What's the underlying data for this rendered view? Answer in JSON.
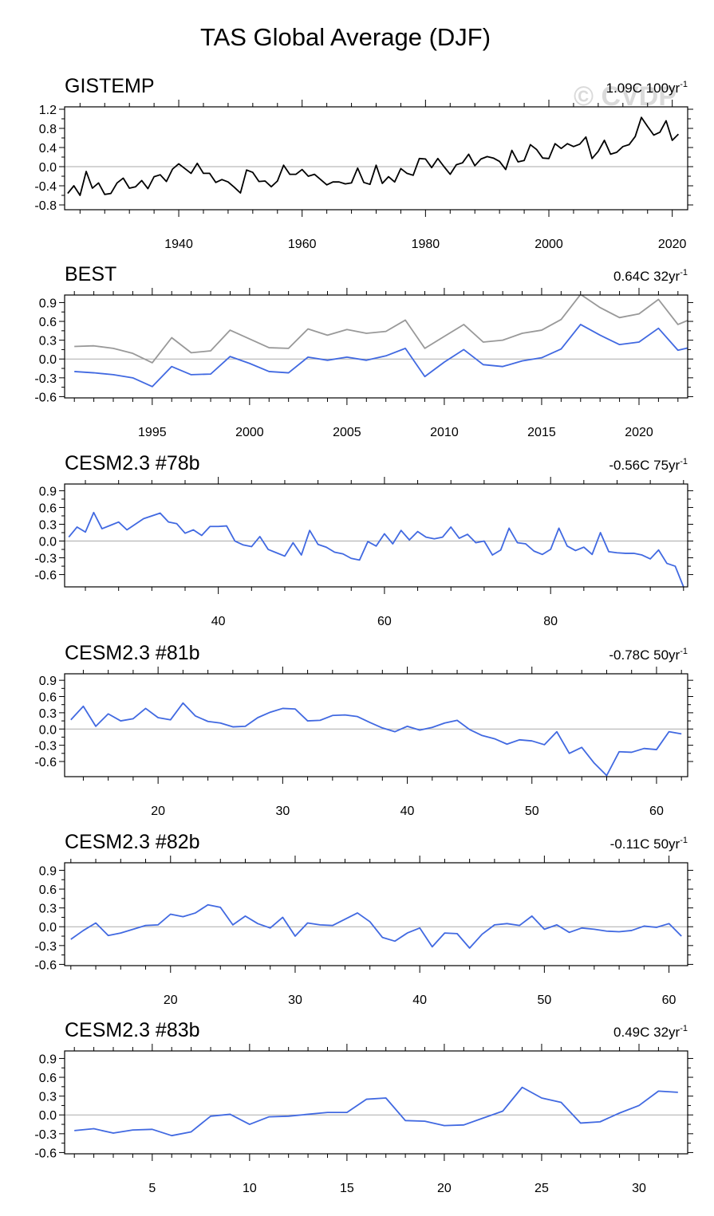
{
  "figure_title": "TAS Global Average (DJF)",
  "watermark": "© CVDP",
  "colors": {
    "obs_line": "#000000",
    "model_line": "#4169e1",
    "reference_line": "#999999",
    "zero_line": "#aaaaaa",
    "frame": "#000000"
  },
  "chart_data": [
    {
      "type": "line",
      "title": "GISTEMP",
      "trend_label": {
        "value": "1.09C 100yr",
        "superscript": "-1"
      },
      "xlim": [
        1921.5,
        2022.5
      ],
      "ylim": [
        -0.9,
        1.25
      ],
      "yticks": [
        "-0.8",
        "-0.4",
        "0.0",
        "0.4",
        "0.8",
        "1.2"
      ],
      "xticks_labeled": [
        "1940",
        "1960",
        "1980",
        "2000",
        "2020"
      ],
      "x_start": 1922,
      "series": [
        {
          "name": "GISTEMP",
          "color": "#000000",
          "values": [
            -0.56,
            -0.4,
            -0.6,
            -0.1,
            -0.45,
            -0.34,
            -0.58,
            -0.56,
            -0.34,
            -0.24,
            -0.45,
            -0.42,
            -0.29,
            -0.46,
            -0.21,
            -0.17,
            -0.31,
            -0.05,
            0.06,
            -0.04,
            -0.14,
            0.07,
            -0.14,
            -0.14,
            -0.33,
            -0.27,
            -0.32,
            -0.43,
            -0.55,
            -0.07,
            -0.12,
            -0.31,
            -0.3,
            -0.42,
            -0.3,
            0.03,
            -0.16,
            -0.16,
            -0.06,
            -0.2,
            -0.16,
            -0.27,
            -0.38,
            -0.32,
            -0.32,
            -0.36,
            -0.34,
            -0.03,
            -0.33,
            -0.37,
            0.03,
            -0.35,
            -0.21,
            -0.32,
            -0.04,
            -0.14,
            -0.18,
            0.17,
            0.16,
            -0.02,
            0.17,
            0.0,
            -0.16,
            0.04,
            0.08,
            0.26,
            0.02,
            0.16,
            0.21,
            0.18,
            0.11,
            -0.06,
            0.34,
            0.1,
            0.13,
            0.46,
            0.36,
            0.18,
            0.17,
            0.48,
            0.38,
            0.48,
            0.42,
            0.47,
            0.62,
            0.17,
            0.32,
            0.55,
            0.26,
            0.3,
            0.42,
            0.46,
            0.63,
            1.03,
            0.84,
            0.66,
            0.72,
            0.96,
            0.55,
            0.68
          ]
        }
      ]
    },
    {
      "type": "line",
      "title": "BEST",
      "trend_label": {
        "value": "0.64C 32yr",
        "superscript": "-1"
      },
      "xlim": [
        1990.5,
        2022.5
      ],
      "ylim": [
        -0.62,
        1.02
      ],
      "yticks": [
        "-0.6",
        "-0.3",
        "0.0",
        "0.3",
        "0.6",
        "0.9"
      ],
      "xticks_labeled": [
        "1995",
        "2000",
        "2005",
        "2010",
        "2015",
        "2020"
      ],
      "x_start": 1991,
      "series": [
        {
          "name": "BEST",
          "color": "#4169e1",
          "values": [
            -0.2,
            -0.22,
            -0.25,
            -0.3,
            -0.44,
            -0.12,
            -0.25,
            -0.24,
            0.04,
            -0.07,
            -0.2,
            -0.22,
            0.03,
            -0.02,
            0.03,
            -0.02,
            0.05,
            0.17,
            -0.28,
            -0.05,
            0.15,
            -0.09,
            -0.12,
            -0.03,
            0.02,
            0.16,
            0.55,
            0.38,
            0.23,
            0.27,
            0.49,
            0.14,
            0.21
          ]
        },
        {
          "name": "GISTEMP reference",
          "color": "#999999",
          "values": [
            0.2,
            0.21,
            0.17,
            0.09,
            -0.06,
            0.34,
            0.1,
            0.13,
            0.46,
            0.32,
            0.18,
            0.17,
            0.48,
            0.38,
            0.47,
            0.41,
            0.44,
            0.62,
            0.17,
            0.36,
            0.55,
            0.27,
            0.3,
            0.41,
            0.46,
            0.63,
            1.03,
            0.82,
            0.66,
            0.72,
            0.95,
            0.55,
            0.68
          ]
        }
      ]
    },
    {
      "type": "line",
      "title": "CESM2.3 #78b",
      "trend_label": {
        "value": "-0.56C 75yr",
        "superscript": "-1"
      },
      "xlim": [
        21.5,
        96.5
      ],
      "ylim": [
        -0.82,
        1.02
      ],
      "yticks": [
        "-0.6",
        "-0.3",
        "0.0",
        "0.3",
        "0.6",
        "0.9"
      ],
      "xticks_labeled": [
        "40",
        "60",
        "80"
      ],
      "x_start": 22,
      "series": [
        {
          "name": "CESM2.3 #78b",
          "color": "#4169e1",
          "values": [
            0.07,
            0.25,
            0.16,
            0.51,
            0.22,
            0.28,
            0.34,
            0.2,
            0.3,
            0.4,
            0.45,
            0.5,
            0.34,
            0.31,
            0.14,
            0.2,
            0.1,
            0.26,
            0.26,
            0.27,
            0.0,
            -0.07,
            -0.1,
            0.08,
            -0.15,
            -0.21,
            -0.27,
            -0.03,
            -0.25,
            0.19,
            -0.06,
            -0.11,
            -0.2,
            -0.23,
            -0.31,
            -0.34,
            -0.01,
            -0.09,
            0.13,
            -0.05,
            0.19,
            0.02,
            0.17,
            0.07,
            0.04,
            0.07,
            0.25,
            0.05,
            0.12,
            -0.03,
            0.0,
            -0.25,
            -0.16,
            0.23,
            -0.03,
            -0.05,
            -0.18,
            -0.24,
            -0.15,
            0.23,
            -0.09,
            -0.17,
            -0.11,
            -0.24,
            0.15,
            -0.19,
            -0.21,
            -0.22,
            -0.22,
            -0.25,
            -0.32,
            -0.16,
            -0.4,
            -0.45,
            -0.82
          ]
        }
      ]
    },
    {
      "type": "line",
      "title": "CESM2.3 #81b",
      "trend_label": {
        "value": "-0.78C 50yr",
        "superscript": "-1"
      },
      "xlim": [
        12.5,
        62.5
      ],
      "ylim": [
        -0.88,
        1.02
      ],
      "yticks": [
        "-0.6",
        "-0.3",
        "0.0",
        "0.3",
        "0.6",
        "0.9"
      ],
      "xticks_labeled": [
        "20",
        "30",
        "40",
        "50",
        "60"
      ],
      "x_start": 13,
      "series": [
        {
          "name": "CESM2.3 #81b",
          "color": "#4169e1",
          "values": [
            0.17,
            0.42,
            0.05,
            0.28,
            0.15,
            0.19,
            0.38,
            0.21,
            0.17,
            0.48,
            0.24,
            0.14,
            0.11,
            0.04,
            0.05,
            0.21,
            0.31,
            0.38,
            0.37,
            0.15,
            0.16,
            0.25,
            0.26,
            0.23,
            0.12,
            0.02,
            -0.05,
            0.05,
            -0.02,
            0.03,
            0.11,
            0.16,
            -0.01,
            -0.12,
            -0.18,
            -0.28,
            -0.2,
            -0.22,
            -0.29,
            -0.05,
            -0.45,
            -0.34,
            -0.63,
            -0.86,
            -0.42,
            -0.43,
            -0.36,
            -0.38,
            -0.05,
            -0.09
          ]
        }
      ]
    },
    {
      "type": "line",
      "title": "CESM2.3 #82b",
      "trend_label": {
        "value": "-0.11C 50yr",
        "superscript": "-1"
      },
      "xlim": [
        11.5,
        61.5
      ],
      "ylim": [
        -0.62,
        1.02
      ],
      "yticks": [
        "-0.6",
        "-0.3",
        "0.0",
        "0.3",
        "0.6",
        "0.9"
      ],
      "xticks_labeled": [
        "20",
        "30",
        "40",
        "50",
        "60"
      ],
      "x_start": 12,
      "series": [
        {
          "name": "CESM2.3 #82b",
          "color": "#4169e1",
          "values": [
            -0.2,
            -0.06,
            0.06,
            -0.14,
            -0.1,
            -0.04,
            0.02,
            0.03,
            0.2,
            0.16,
            0.22,
            0.35,
            0.31,
            0.03,
            0.17,
            0.05,
            -0.02,
            0.15,
            -0.15,
            0.06,
            0.03,
            0.02,
            0.12,
            0.22,
            0.08,
            -0.17,
            -0.23,
            -0.1,
            -0.02,
            -0.32,
            -0.1,
            -0.11,
            -0.34,
            -0.12,
            0.03,
            0.05,
            0.02,
            0.17,
            -0.04,
            0.03,
            -0.09,
            -0.02,
            -0.04,
            -0.07,
            -0.08,
            -0.06,
            0.01,
            -0.01,
            0.05,
            -0.15
          ]
        }
      ]
    },
    {
      "type": "line",
      "title": "CESM2.3 #83b",
      "trend_label": {
        "value": "0.49C 32yr",
        "superscript": "-1"
      },
      "xlim": [
        0.5,
        32.5
      ],
      "ylim": [
        -0.62,
        1.02
      ],
      "yticks": [
        "-0.6",
        "-0.3",
        "0.0",
        "0.3",
        "0.6",
        "0.9"
      ],
      "xticks_labeled": [
        "5",
        "10",
        "15",
        "20",
        "25",
        "30"
      ],
      "x_start": 1,
      "series": [
        {
          "name": "CESM2.3 #83b",
          "color": "#4169e1",
          "values": [
            -0.25,
            -0.22,
            -0.29,
            -0.24,
            -0.23,
            -0.33,
            -0.27,
            -0.02,
            0.01,
            -0.15,
            -0.03,
            -0.02,
            0.01,
            0.04,
            0.04,
            0.25,
            0.27,
            -0.09,
            -0.1,
            -0.17,
            -0.16,
            -0.05,
            0.06,
            0.44,
            0.27,
            0.2,
            -0.13,
            -0.11,
            0.03,
            0.15,
            0.38,
            0.36
          ]
        }
      ]
    }
  ]
}
